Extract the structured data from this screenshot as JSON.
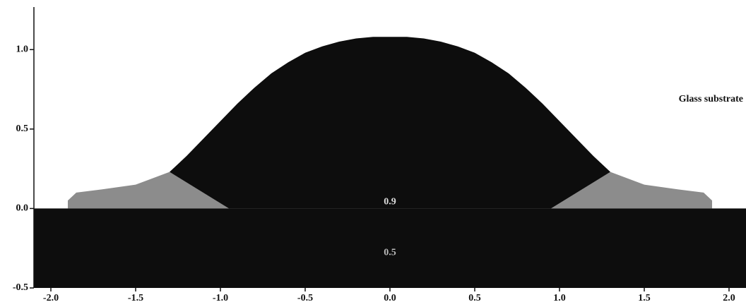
{
  "chart_data": {
    "type": "area",
    "annotations": [
      "Glass substrate",
      "0.9",
      "0.5"
    ],
    "xlim": [
      -2.1,
      2.1
    ],
    "ylim": [
      -0.5,
      1.25
    ],
    "xticks": [
      {
        "value": -2,
        "label": "-2.0"
      },
      {
        "value": -1.5,
        "label": "-1.5"
      },
      {
        "value": -1,
        "label": "-1.0"
      },
      {
        "value": -0.5,
        "label": "-0.5"
      },
      {
        "value": 0,
        "label": "0.0"
      },
      {
        "value": 0.5,
        "label": "0.5"
      },
      {
        "value": 1,
        "label": "1.0"
      },
      {
        "value": 1.5,
        "label": "1.5"
      },
      {
        "value": 2,
        "label": "2.0"
      }
    ],
    "yticks": [
      -0.5,
      {
        "value": 0,
        "label": "0.0"
      },
      0.5,
      {
        "value": 1,
        "label": "1.0"
      }
    ],
    "series": [
      {
        "color": "#8c8c8c",
        "x": [
          -0.95,
          -1.3,
          -1.5,
          -1.7,
          -1.85,
          -1.9,
          -1.9
        ],
        "values": [
          0,
          0.23,
          0.15,
          0.12,
          0.1,
          0.05,
          0
        ]
      },
      {
        "color": "#8c8c8c",
        "x": [
          0.95,
          1.3,
          1.5,
          1.7,
          1.85,
          1.9,
          1.9
        ],
        "values": [
          0,
          0.23,
          0.15,
          0.12,
          0.1,
          0.05,
          0
        ]
      },
      {
        "color": "#0d0d0d",
        "x": [
          -0.95,
          -1.3,
          -1.2,
          -1.1,
          -1.0,
          -0.9,
          -0.8,
          -0.7,
          -0.6,
          -0.5,
          -0.4,
          -0.3,
          -0.2,
          -0.1,
          0,
          0.1,
          0.2,
          0.3,
          0.4,
          0.5,
          0.6,
          0.7,
          0.8,
          0.9,
          1.0,
          1.1,
          1.2,
          1.3,
          0.95
        ],
        "values": [
          0,
          0.23,
          0.33,
          0.44,
          0.55,
          0.66,
          0.76,
          0.85,
          0.92,
          0.98,
          1.02,
          1.05,
          1.07,
          1.08,
          1.08,
          1.08,
          1.07,
          1.05,
          1.02,
          0.98,
          0.92,
          0.85,
          0.76,
          0.66,
          0.55,
          0.44,
          0.33,
          0.23,
          0
        ]
      },
      {
        "color": "#0d0d0d",
        "x": [
          -2.1,
          2.1,
          2.1,
          -2.1
        ],
        "values": [
          0,
          0,
          -0.5,
          -0.5
        ]
      }
    ]
  }
}
